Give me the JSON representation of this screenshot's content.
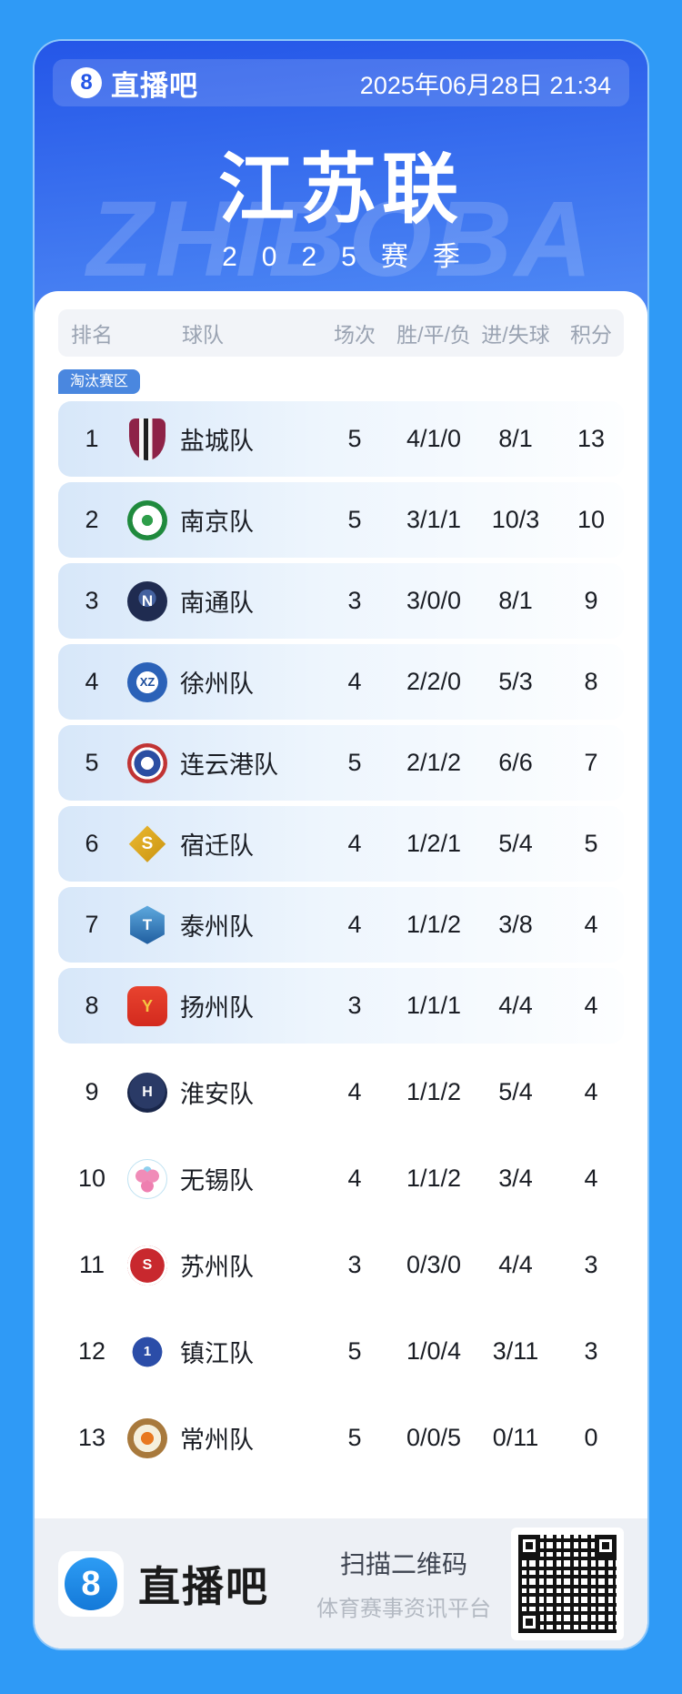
{
  "header": {
    "logo_badge": "8",
    "logo_text": "直播吧",
    "datetime": "2025年06月28日 21:34"
  },
  "title": "江苏联",
  "season": "2025赛季",
  "watermark": "ZHIBOBA",
  "table": {
    "columns": [
      "排名",
      "球队",
      "场次",
      "胜/平/负",
      "进/失球",
      "积分"
    ],
    "zone_badge": "淘汰赛区",
    "rows": [
      {
        "rank": "1",
        "team": "盐城队",
        "played": "5",
        "wdl": "4/1/0",
        "goals": "8/1",
        "points": "13",
        "highlight": true,
        "crest": {
          "shape": "shield",
          "bg": "linear-gradient(90deg,#8E2347 0%,#8E2347 28%,#F5F5F5 28%,#F5F5F5 40%,#1E1E1E 40%,#1E1E1E 52%,#F5F5F5 52%,#F5F5F5 64%,#8E2347 64%)",
          "glyph": "",
          "glyph_color": "#FFFFFF",
          "glyph_size": "12px"
        }
      },
      {
        "rank": "2",
        "team": "南京队",
        "played": "5",
        "wdl": "3/1/1",
        "goals": "10/3",
        "points": "10",
        "highlight": true,
        "crest": {
          "shape": "circle",
          "bg": "radial-gradient(circle at 50% 50%, #2E9E4A 0 19%, #FFFFFF 20% 52%, #1F8A3D 53% 100%)",
          "glyph": "",
          "glyph_color": "#FFFFFF",
          "glyph_size": "12px"
        }
      },
      {
        "rank": "3",
        "team": "南通队",
        "played": "3",
        "wdl": "3/0/0",
        "goals": "8/1",
        "points": "9",
        "highlight": true,
        "crest": {
          "shape": "circle",
          "bg": "radial-gradient(circle at 50% 42%, #44619F 0 28%, #1F2B50 29% 100%)",
          "glyph": "N",
          "glyph_color": "#FFFFFF",
          "glyph_size": "17px"
        }
      },
      {
        "rank": "4",
        "team": "徐州队",
        "played": "4",
        "wdl": "2/2/0",
        "goals": "5/3",
        "points": "8",
        "highlight": true,
        "crest": {
          "shape": "circle",
          "bg": "radial-gradient(circle, #FFFFFF 0 38%, #2B62B8 39% 100%)",
          "glyph": "XZ",
          "glyph_color": "#1E4E9C",
          "glyph_size": "13px"
        }
      },
      {
        "rank": "5",
        "team": "连云港队",
        "played": "5",
        "wdl": "2/1/2",
        "goals": "6/6",
        "points": "7",
        "highlight": true,
        "crest": {
          "shape": "circle",
          "bg": "radial-gradient(circle at 50% 50%, #FFFFFF 0 22%, #2B4EA2 23% 46%, #FFFFFF 47% 56%, #C13434 57% 100%)",
          "glyph": "",
          "glyph_color": "#FFFFFF",
          "glyph_size": "12px"
        }
      },
      {
        "rank": "6",
        "team": "宿迁队",
        "played": "4",
        "wdl": "1/2/1",
        "goals": "5/4",
        "points": "5",
        "highlight": true,
        "crest": {
          "shape": "diamond",
          "bg": "linear-gradient(135deg,#EDBB33,#C8920F)",
          "glyph": "S",
          "glyph_color": "#FFFFFF",
          "glyph_size": "19px"
        }
      },
      {
        "rank": "7",
        "team": "泰州队",
        "played": "4",
        "wdl": "1/1/2",
        "goals": "3/8",
        "points": "4",
        "highlight": true,
        "crest": {
          "shape": "hexagon",
          "bg": "linear-gradient(180deg,#5FAADF,#1E5C9E)",
          "glyph": "T",
          "glyph_color": "#FFFFFF",
          "glyph_size": "17px"
        }
      },
      {
        "rank": "8",
        "team": "扬州队",
        "played": "3",
        "wdl": "1/1/1",
        "goals": "4/4",
        "points": "4",
        "highlight": true,
        "crest": {
          "shape": "rsquare",
          "bg": "linear-gradient(180deg,#E8432F,#D32A1E)",
          "glyph": "Y",
          "glyph_color": "#F5C542",
          "glyph_size": "18px"
        }
      },
      {
        "rank": "9",
        "team": "淮安队",
        "played": "4",
        "wdl": "1/1/2",
        "goals": "5/4",
        "points": "4",
        "highlight": false,
        "crest": {
          "shape": "circle",
          "bg": "radial-gradient(circle at 50% 45%, #2A3A66 0 60%, #19264A 61% 100%)",
          "glyph": "H",
          "glyph_color": "#FFFFFF",
          "glyph_size": "16px"
        }
      },
      {
        "rank": "10",
        "team": "无锡队",
        "played": "4",
        "wdl": "1/1/2",
        "goals": "3/4",
        "points": "4",
        "highlight": false,
        "crest": {
          "shape": "circle",
          "bg": "radial-gradient(circle at 36% 42%, #F08CB8 0 19%, rgba(0,0,0,0) 20%), radial-gradient(circle at 64% 42%, #F08CB8 0 19%, rgba(0,0,0,0) 20%), radial-gradient(circle at 50% 68%, #EE7FB0 0 19%, rgba(0,0,0,0) 20%), radial-gradient(circle at 50% 28%, #8ED0EE 0 12%, rgba(0,0,0,0) 13%), #FFFFFF",
          "glyph": "",
          "glyph_color": "#E87BAE",
          "glyph_size": "12px",
          "border": "1px solid #BFE2F2"
        }
      },
      {
        "rank": "11",
        "team": "苏州队",
        "played": "3",
        "wdl": "0/3/0",
        "goals": "4/4",
        "points": "3",
        "highlight": false,
        "crest": {
          "shape": "circle",
          "bg": "radial-gradient(circle, #C8282E 0 60%, #FFFFFF 61% 70%, #C8282E 71% 100%)",
          "glyph": "S",
          "glyph_color": "#FFFFFF",
          "glyph_size": "16px"
        }
      },
      {
        "rank": "12",
        "team": "镇江队",
        "played": "5",
        "wdl": "1/0/4",
        "goals": "3/11",
        "points": "3",
        "highlight": false,
        "crest": {
          "shape": "circle",
          "bg": "radial-gradient(circle, #2B4DA8 0 52%, #FFFFFF 53% 80%, #E8C84A 81% 100%)",
          "glyph": "1",
          "glyph_color": "#FFFFFF",
          "glyph_size": "15px"
        }
      },
      {
        "rank": "13",
        "team": "常州队",
        "played": "5",
        "wdl": "0/0/5",
        "goals": "0/11",
        "points": "0",
        "highlight": false,
        "crest": {
          "shape": "circle",
          "bg": "radial-gradient(circle, #E87820 0 22%, #F5EFDC 23% 48%, #A8793C 49% 100%)",
          "glyph": "",
          "glyph_color": "#FFFFFF",
          "glyph_size": "12px"
        }
      }
    ]
  },
  "footer": {
    "logo_badge": "8",
    "logo_text": "直播吧",
    "scan_text": "扫描二维码",
    "platform_text": "体育赛事资讯平台",
    "qr_icon": "qr-code"
  },
  "colors": {
    "page_bg": "#2F9AF6",
    "card_grad_top": "#2456E8",
    "card_grad_bottom": "#4C86F4",
    "topbar_bg": "rgba(255,255,255,0.15)",
    "white": "#FFFFFF",
    "header_row_bg": "#F2F4F8",
    "header_row_text": "#9AA3B2",
    "badge_bg": "#4A87DF",
    "row_grad_left": "#D7E7F9",
    "row_grad_right": "#FDFEFF",
    "text_dark": "#1A1D24",
    "footer_bg": "#EDF0F5",
    "brand_blue": "#2D9CF4",
    "muted_text": "#B3B9C2"
  }
}
